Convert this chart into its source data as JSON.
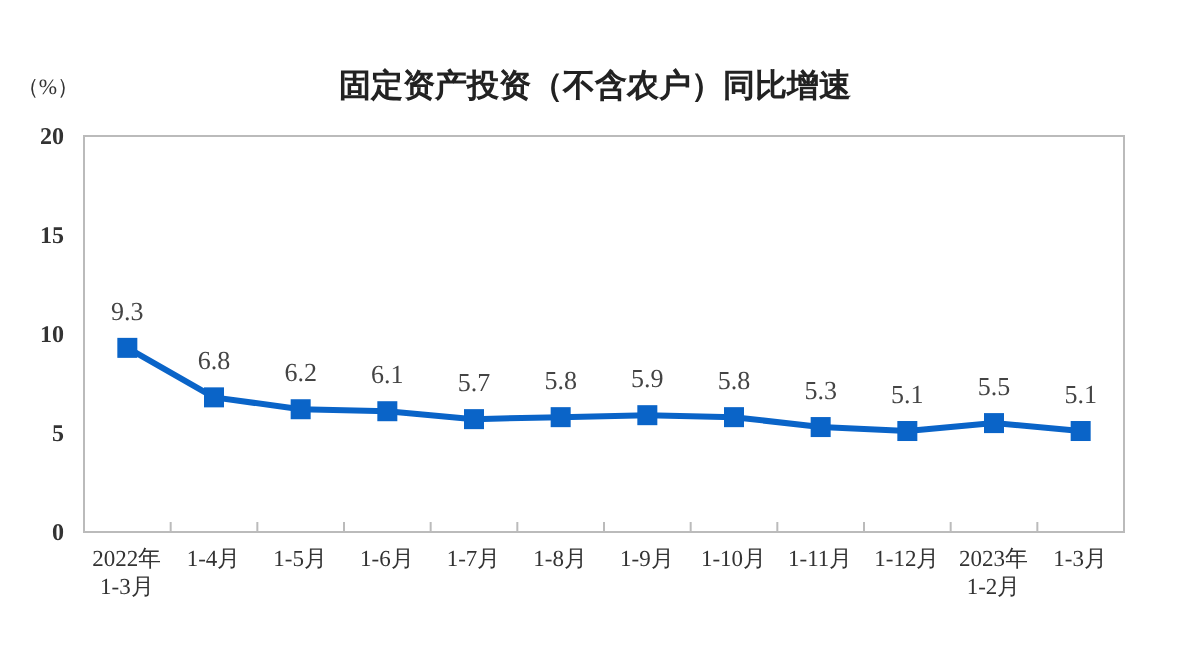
{
  "chart_data": {
    "type": "line",
    "title": "固定资产投资（不含农户）同比增速",
    "ylabel": "（%）",
    "categories": [
      "2022年\n1-3月",
      "1-4月",
      "1-5月",
      "1-6月",
      "1-7月",
      "1-8月",
      "1-9月",
      "1-10月",
      "1-11月",
      "1-12月",
      "2023年\n1-2月",
      "1-3月"
    ],
    "series": [
      {
        "color": "#0a64c8",
        "values": [
          9.3,
          6.8,
          6.2,
          6.1,
          5.7,
          5.8,
          5.9,
          5.8,
          5.3,
          5.1,
          5.5,
          5.1
        ]
      }
    ],
    "ylim": [
      0,
      20
    ],
    "yticks": [
      0,
      5,
      10,
      15,
      20
    ],
    "grid": false,
    "marker": "square",
    "line_style": "solid",
    "data_labels": true
  }
}
